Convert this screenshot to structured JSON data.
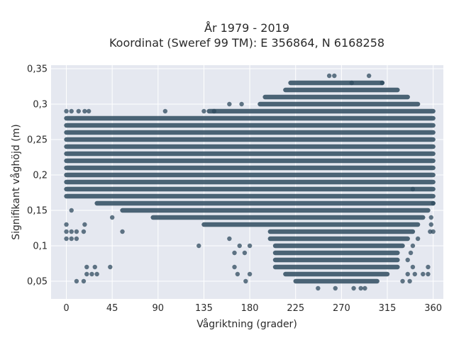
{
  "chart_data": {
    "type": "scatter",
    "title_lines": [
      "År 1979 - 2019",
      "Koordinat (Sweref 99 TM): E 356864, N 6168258"
    ],
    "xlabel": "Vågriktning (grader)",
    "ylabel": "Signifikant våghöjd (m)",
    "xlim": [
      -15,
      370
    ],
    "ylim": [
      0.025,
      0.355
    ],
    "x_ticks": [
      0,
      45,
      90,
      135,
      180,
      225,
      270,
      315,
      360
    ],
    "y_ticks": [
      0.05,
      0.1,
      0.15,
      0.2,
      0.25,
      0.3,
      0.35
    ],
    "y_tick_labels": [
      "0,05",
      "0,1",
      "0,15",
      "0,2",
      "0,25",
      "0,3",
      "0,35"
    ],
    "grid": true,
    "legend": "none",
    "colors": {
      "plot_bg": "#e5e8f0",
      "grid": "#ffffff",
      "marker": "#2f4b5f"
    },
    "height_step": 0.01,
    "bands": [
      {
        "y": 0.05,
        "x_range": [
          225,
          305
        ]
      },
      {
        "y": 0.06,
        "x_range": [
          215,
          315
        ]
      },
      {
        "y": 0.07,
        "x_range": [
          205,
          325
        ]
      },
      {
        "y": 0.08,
        "x_range": [
          205,
          325
        ]
      },
      {
        "y": 0.09,
        "x_range": [
          205,
          325
        ]
      },
      {
        "y": 0.1,
        "x_range": [
          205,
          330
        ]
      },
      {
        "y": 0.11,
        "x_range": [
          200,
          335
        ]
      },
      {
        "y": 0.12,
        "x_range": [
          200,
          340
        ]
      },
      {
        "y": 0.13,
        "x_range": [
          135,
          345
        ]
      },
      {
        "y": 0.14,
        "x_range": [
          85,
          350
        ]
      },
      {
        "y": 0.15,
        "x_range": [
          55,
          355
        ]
      },
      {
        "y": 0.16,
        "x_range": [
          30,
          360
        ]
      },
      {
        "y": 0.17,
        "x_range": [
          0,
          360
        ]
      },
      {
        "y": 0.18,
        "x_range": [
          0,
          360
        ]
      },
      {
        "y": 0.19,
        "x_range": [
          0,
          360
        ]
      },
      {
        "y": 0.2,
        "x_range": [
          0,
          360
        ]
      },
      {
        "y": 0.21,
        "x_range": [
          0,
          360
        ]
      },
      {
        "y": 0.22,
        "x_range": [
          0,
          360
        ]
      },
      {
        "y": 0.23,
        "x_range": [
          0,
          360
        ]
      },
      {
        "y": 0.24,
        "x_range": [
          0,
          360
        ]
      },
      {
        "y": 0.25,
        "x_range": [
          0,
          360
        ]
      },
      {
        "y": 0.26,
        "x_range": [
          0,
          360
        ]
      },
      {
        "y": 0.27,
        "x_range": [
          0,
          360
        ]
      },
      {
        "y": 0.28,
        "x_range": [
          0,
          360
        ]
      },
      {
        "y": 0.29,
        "x_range": [
          140,
          360
        ]
      },
      {
        "y": 0.3,
        "x_range": [
          190,
          345
        ]
      },
      {
        "y": 0.31,
        "x_range": [
          195,
          335
        ]
      },
      {
        "y": 0.32,
        "x_range": [
          215,
          325
        ]
      },
      {
        "y": 0.33,
        "x_range": [
          220,
          310
        ]
      }
    ],
    "points": [
      [
        0,
        0.29
      ],
      [
        5,
        0.29
      ],
      [
        12,
        0.29
      ],
      [
        18,
        0.29
      ],
      [
        22,
        0.29
      ],
      [
        0,
        0.12
      ],
      [
        5,
        0.12
      ],
      [
        10,
        0.12
      ],
      [
        0,
        0.11
      ],
      [
        5,
        0.11
      ],
      [
        10,
        0.11
      ],
      [
        0,
        0.13
      ],
      [
        18,
        0.13
      ],
      [
        17,
        0.12
      ],
      [
        5,
        0.15
      ],
      [
        10,
        0.05
      ],
      [
        17,
        0.05
      ],
      [
        20,
        0.06
      ],
      [
        25,
        0.06
      ],
      [
        30,
        0.06
      ],
      [
        20,
        0.07
      ],
      [
        28,
        0.07
      ],
      [
        43,
        0.07
      ],
      [
        45,
        0.14
      ],
      [
        55,
        0.12
      ],
      [
        97,
        0.29
      ],
      [
        135,
        0.29
      ],
      [
        145,
        0.29
      ],
      [
        160,
        0.3
      ],
      [
        172,
        0.3
      ],
      [
        170,
        0.1
      ],
      [
        180,
        0.1
      ],
      [
        175,
        0.09
      ],
      [
        165,
        0.09
      ],
      [
        160,
        0.11
      ],
      [
        130,
        0.1
      ],
      [
        165,
        0.07
      ],
      [
        168,
        0.06
      ],
      [
        180,
        0.06
      ],
      [
        176,
        0.05
      ],
      [
        258,
        0.34
      ],
      [
        263,
        0.34
      ],
      [
        280,
        0.33
      ],
      [
        297,
        0.34
      ],
      [
        310,
        0.33
      ],
      [
        247,
        0.04
      ],
      [
        264,
        0.04
      ],
      [
        282,
        0.04
      ],
      [
        289,
        0.04
      ],
      [
        293,
        0.04
      ],
      [
        330,
        0.05
      ],
      [
        337,
        0.05
      ],
      [
        335,
        0.06
      ],
      [
        342,
        0.06
      ],
      [
        340,
        0.07
      ],
      [
        355,
        0.07
      ],
      [
        355,
        0.06
      ],
      [
        350,
        0.06
      ],
      [
        357,
        0.12
      ],
      [
        360,
        0.12
      ],
      [
        358,
        0.14
      ],
      [
        360,
        0.16
      ],
      [
        358,
        0.13
      ],
      [
        345,
        0.11
      ],
      [
        338,
        0.09
      ],
      [
        335,
        0.08
      ],
      [
        340,
        0.1
      ],
      [
        340,
        0.18
      ]
    ]
  }
}
